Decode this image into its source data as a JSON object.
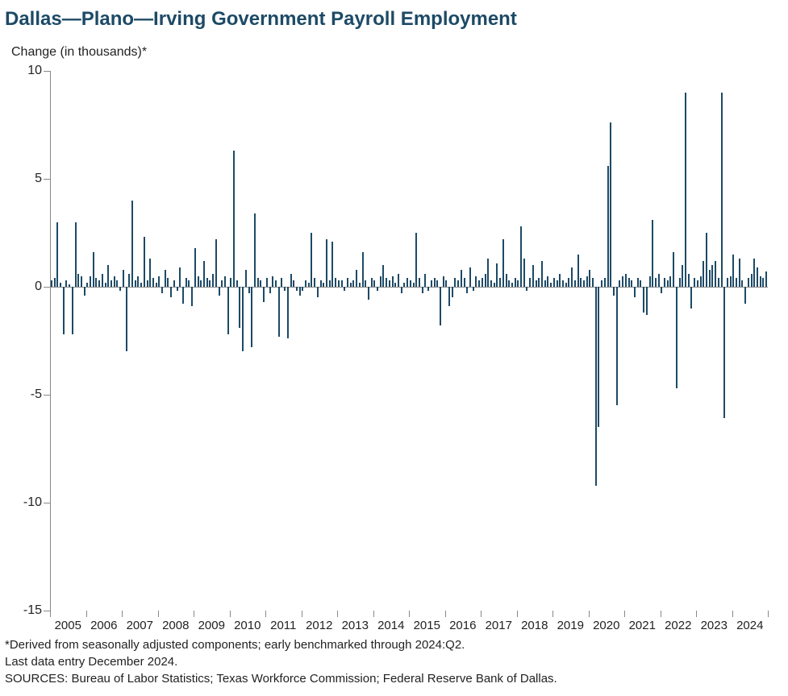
{
  "title": "Dallas—Plano—Irving Government Payroll Employment",
  "subtitle": "Change (in thousands)*",
  "footnote1": "*Derived from seasonally adjusted components; early benchmarked through 2024:Q2.",
  "footnote2": "Last data entry December 2024.",
  "footnote3": "SOURCES: Bureau of Labor Statistics; Texas Workforce Commission; Federal Reserve Bank of Dallas.",
  "chart": {
    "type": "bar",
    "ylim": [
      -15,
      10
    ],
    "yticks": [
      -15,
      -10,
      -5,
      0,
      5,
      10
    ],
    "x_start_year": 2005,
    "x_end_year": 2024,
    "x_tick_labels": [
      "2005",
      "2006",
      "2007",
      "2008",
      "2009",
      "2010",
      "2011",
      "2012",
      "2013",
      "2014",
      "2015",
      "2016",
      "2017",
      "2018",
      "2019",
      "2020",
      "2021",
      "2022",
      "2023",
      "2024"
    ],
    "bar_color": "#1d4a66",
    "background_color": "#ffffff",
    "axis_color": "#888888",
    "title_color": "#1d4a66",
    "text_color": "#222222",
    "title_fontsize": 24,
    "label_fontsize": 16,
    "values": [
      0.3,
      0.4,
      3.0,
      0.2,
      -2.2,
      0.3,
      0.1,
      -2.2,
      3.0,
      0.6,
      0.5,
      -0.4,
      0.2,
      0.5,
      1.6,
      0.4,
      0.3,
      0.6,
      0.2,
      1.0,
      0.3,
      0.5,
      0.3,
      -0.2,
      0.8,
      -3.0,
      0.6,
      4.0,
      0.3,
      0.5,
      0.2,
      2.3,
      0.3,
      1.3,
      0.4,
      0.2,
      0.5,
      -0.3,
      0.8,
      0.4,
      -0.5,
      0.3,
      -0.2,
      0.9,
      -0.8,
      0.4,
      0.3,
      -0.9,
      1.8,
      0.5,
      0.3,
      1.2,
      0.4,
      0.3,
      0.6,
      2.2,
      -0.4,
      0.3,
      0.5,
      -2.2,
      0.4,
      6.3,
      0.3,
      -1.9,
      -3.0,
      0.8,
      -0.3,
      -2.8,
      3.4,
      0.4,
      0.3,
      -0.7,
      0.4,
      -0.3,
      0.5,
      0.3,
      -2.3,
      0.4,
      -0.2,
      -2.4,
      0.6,
      0.3,
      -0.2,
      -0.4,
      -0.2,
      0.3,
      0.2,
      2.5,
      0.4,
      -0.5,
      0.3,
      0.2,
      2.2,
      0.3,
      2.1,
      0.4,
      0.3,
      0.3,
      -0.2,
      0.4,
      0.2,
      0.3,
      0.8,
      0.2,
      1.6,
      0.3,
      -0.6,
      0.4,
      0.3,
      -0.2,
      0.5,
      1.0,
      0.4,
      0.3,
      0.5,
      0.2,
      0.6,
      -0.3,
      0.2,
      0.4,
      0.3,
      0.2,
      2.5,
      0.4,
      -0.3,
      0.6,
      -0.2,
      0.3,
      0.4,
      0.3,
      -1.8,
      0.5,
      0.3,
      -0.9,
      -0.5,
      0.4,
      0.3,
      0.8,
      0.4,
      -0.3,
      0.9,
      -0.2,
      0.5,
      0.3,
      0.4,
      0.6,
      1.3,
      0.3,
      0.2,
      1.1,
      0.4,
      2.2,
      0.6,
      0.3,
      0.2,
      0.4,
      0.3,
      2.8,
      1.3,
      -0.2,
      0.4,
      1.0,
      0.3,
      0.4,
      1.2,
      0.3,
      0.5,
      0.2,
      0.4,
      0.3,
      0.6,
      0.3,
      0.2,
      0.4,
      0.9,
      0.3,
      1.5,
      0.4,
      0.3,
      0.5,
      0.8,
      0.4,
      -9.2,
      -6.5,
      0.3,
      0.4,
      5.6,
      7.6,
      -0.4,
      -5.5,
      0.3,
      0.5,
      0.6,
      0.4,
      0.3,
      -0.5,
      0.4,
      0.3,
      -1.2,
      -1.3,
      0.5,
      3.1,
      0.4,
      0.6,
      -0.3,
      0.4,
      0.3,
      0.5,
      1.6,
      -4.7,
      0.4,
      1.0,
      9.0,
      0.6,
      -1.0,
      0.4,
      0.3,
      0.5,
      1.2,
      2.5,
      0.8,
      1.0,
      1.2,
      0.4,
      9.0,
      -6.1,
      0.4,
      0.5,
      1.5,
      0.4,
      1.3,
      0.3,
      -0.8,
      0.4,
      0.6,
      1.3,
      0.9,
      0.5,
      0.4,
      0.7
    ]
  }
}
